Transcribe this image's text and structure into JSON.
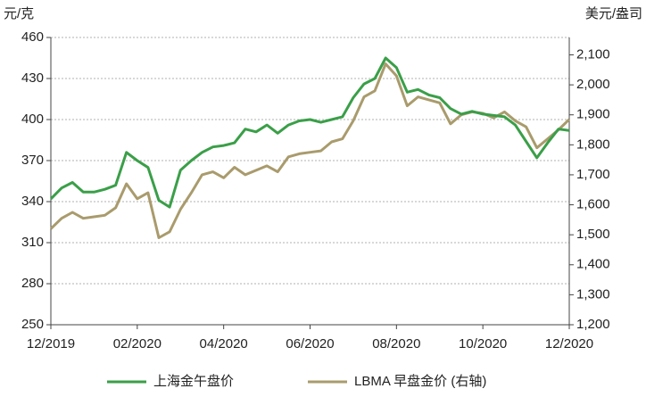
{
  "chart_data": {
    "type": "line",
    "y_label": "元/克",
    "y2_label": "美元/盎司",
    "categories": [
      "12/2019",
      null,
      null,
      null,
      null,
      null,
      null,
      null,
      "02/2020",
      null,
      null,
      null,
      null,
      null,
      null,
      null,
      "04/2020",
      null,
      null,
      null,
      null,
      null,
      null,
      null,
      "06/2020",
      null,
      null,
      null,
      null,
      null,
      null,
      null,
      "08/2020",
      null,
      null,
      null,
      null,
      null,
      null,
      null,
      "10/2020",
      null,
      null,
      null,
      null,
      null,
      null,
      null,
      "12/2020"
    ],
    "series": [
      {
        "name": "上海金午盘价",
        "color": "#3a9f48",
        "values": [
          342,
          350,
          354,
          347,
          347,
          349,
          352,
          376,
          370,
          365,
          341,
          336,
          363,
          370,
          376,
          380,
          381,
          383,
          393,
          391,
          396,
          390,
          396,
          399,
          400,
          398,
          400,
          402,
          416,
          426,
          430,
          445,
          438,
          420,
          422,
          418,
          416,
          408,
          404,
          406,
          404,
          403,
          402,
          396,
          384,
          372,
          383,
          393,
          392
        ]
      },
      {
        "name": "LBMA 早盘金价 (右轴)",
        "color": "#a99b6c",
        "axis": "y2",
        "values": [
          1520,
          1555,
          1575,
          1555,
          1560,
          1565,
          1590,
          1670,
          1620,
          1640,
          1490,
          1510,
          1585,
          1640,
          1700,
          1710,
          1690,
          1725,
          1700,
          1715,
          1730,
          1710,
          1760,
          1770,
          1775,
          1780,
          1810,
          1820,
          1880,
          1960,
          1980,
          2070,
          2030,
          1930,
          1960,
          1950,
          1940,
          1870,
          1900,
          1910,
          1905,
          1890,
          1910,
          1880,
          1860,
          1790,
          1820,
          1850,
          1885
        ]
      }
    ],
    "ylim": [
      250,
      460
    ],
    "yticks": [
      250,
      280,
      310,
      340,
      370,
      400,
      430,
      460
    ],
    "y2lim": [
      1200,
      2158
    ],
    "y2ticks": [
      {
        "value": 1200,
        "label": "1,200"
      },
      {
        "value": 1300,
        "label": "1,300"
      },
      {
        "value": 1400,
        "label": "1,400"
      },
      {
        "value": 1500,
        "label": "1,500"
      },
      {
        "value": 1600,
        "label": "1,600"
      },
      {
        "value": 1700,
        "label": "1,700"
      },
      {
        "value": 1800,
        "label": "1,800"
      },
      {
        "value": 1900,
        "label": "1,900"
      },
      {
        "value": 2000,
        "label": "2,000"
      },
      {
        "value": 2100,
        "label": "2,100"
      }
    ],
    "grid": true,
    "legend": "bottom"
  }
}
